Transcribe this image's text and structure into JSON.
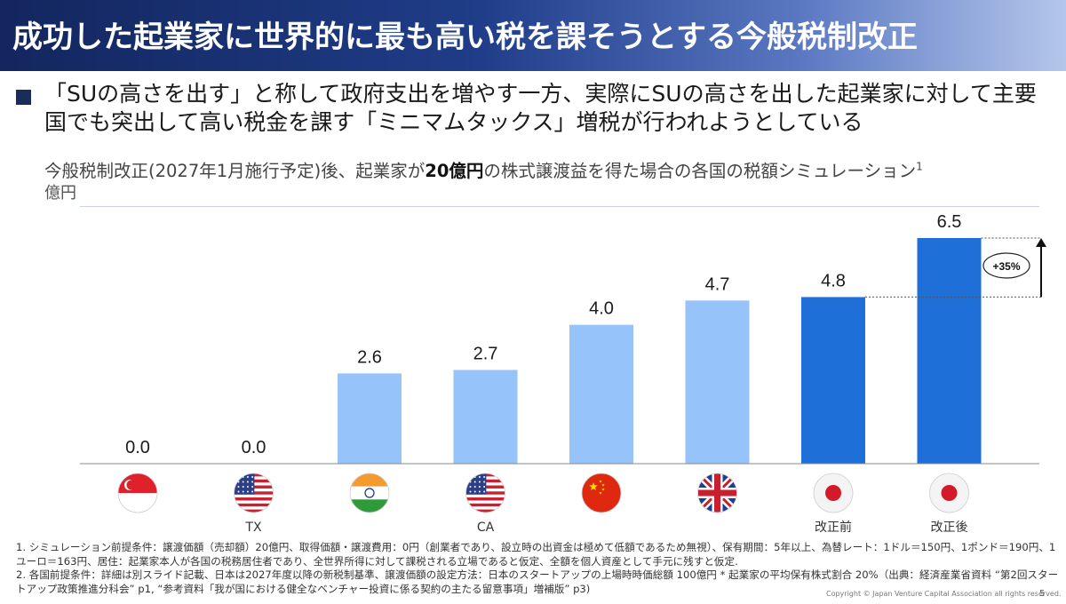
{
  "header": {
    "title": "成功した起業家に世界的に最も高い税を課そうとする今般税制改正"
  },
  "bullet": {
    "text": "「SUの高さを出す」と称して政府支出を増やす一方、実際にSUの高さを出した起業家に対して主要国でも突出して高い税金を課す「ミニマムタックス」増税が行われようとしている"
  },
  "subtitle": {
    "pre": "今般税制改正(2027年1月施行予定)後、起業家が",
    "bold": "20億円",
    "post": "の株式譲渡益を得た場合の各国の税額シミュレーション",
    "sup": "1"
  },
  "unit": "億円",
  "chart_data": {
    "type": "bar",
    "ylabel": "億円",
    "ylim": [
      0,
      6.5
    ],
    "categories": [
      "Singapore",
      "US TX",
      "India",
      "US CA",
      "China",
      "UK",
      "Japan 改正前",
      "Japan 改正後"
    ],
    "values": [
      0.0,
      0.0,
      2.6,
      2.7,
      4.0,
      4.7,
      4.8,
      6.5
    ],
    "value_labels": [
      "0.0",
      "0.0",
      "2.6",
      "2.7",
      "4.0",
      "4.7",
      "4.8",
      "6.5"
    ],
    "sublabels": [
      "",
      "TX",
      "",
      "CA",
      "",
      "",
      "改正前",
      "改正後"
    ],
    "flags": [
      "flag-singapore",
      "flag-usa",
      "flag-india",
      "flag-usa",
      "flag-china",
      "flag-uk",
      "flag-japan",
      "flag-japan"
    ],
    "colors": [
      "#96c3f9",
      "#96c3f9",
      "#96c3f9",
      "#96c3f9",
      "#96c3f9",
      "#96c3f9",
      "#1f6fd8",
      "#1f6fd8"
    ],
    "annotation": "+35%",
    "grid": false
  },
  "footnotes": {
    "note1": "1. シミュレーション前提条件：譲渡価額（売却額）20億円、取得価額・譲渡費用：0円（創業者であり、設立時の出資金は極めて低額であるため無視）、保有期間：5年以上、為替レート：1ドル＝150円、1ポンド＝190円、1ユーロ＝163円、居住：起業家本人が各国の税務居住者であり、全世界所得に対して課税される立場であると仮定、全額を個人資産として手元に残すと仮定.",
    "note2": "2. 各国前提条件：詳細は別スライド記載、日本は2027年度以降の新税制基準、譲渡価額の設定方法：日本のスタートアップの上場時時価総額 100億円 * 起業家の平均保有株式割合 20%（出典：経済産業省資料 “第2回スタートアップ政策推進分科会” p1, “参考資料「我が国における健全なベンチャー投資に係る契約の主たる留意事項」増補版” p3)"
  },
  "copyright": "Copyright © Japan Venture Capital Association all rights reserved.",
  "page_number": "5"
}
